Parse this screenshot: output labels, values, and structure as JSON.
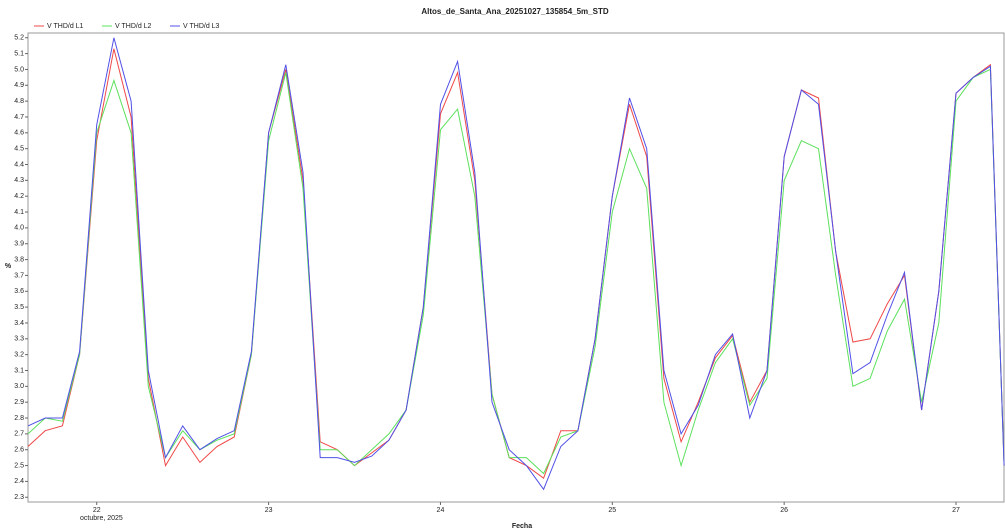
{
  "chart_data": {
    "type": "line",
    "title": "Altos_de_Santa_Ana_20251027_135854_5m_STD",
    "x_label": "Fecha",
    "x_sublabel": "octubre, 2025",
    "y_label": "%",
    "legend": "top-left",
    "grid": false,
    "x": [
      21.6,
      21.7,
      21.8,
      21.9,
      22.0,
      22.1,
      22.2,
      22.3,
      22.4,
      22.5,
      22.6,
      22.7,
      22.8,
      22.9,
      23.0,
      23.1,
      23.2,
      23.3,
      23.4,
      23.5,
      23.6,
      23.7,
      23.8,
      23.9,
      24.0,
      24.1,
      24.2,
      24.3,
      24.4,
      24.5,
      24.6,
      24.7,
      24.8,
      24.9,
      25.0,
      25.1,
      25.2,
      25.3,
      25.4,
      25.5,
      25.6,
      25.7,
      25.8,
      25.9,
      26.0,
      26.1,
      26.2,
      26.3,
      26.4,
      26.5,
      26.6,
      26.7,
      26.8,
      26.9,
      27.0,
      27.1,
      27.2,
      27.28
    ],
    "series": [
      {
        "name": "V THD/d L1",
        "color": "#f04848",
        "values": [
          2.62,
          2.72,
          2.75,
          3.2,
          4.55,
          5.13,
          4.7,
          3.05,
          2.5,
          2.68,
          2.52,
          2.62,
          2.68,
          3.2,
          4.6,
          5.0,
          4.3,
          2.65,
          2.6,
          2.5,
          2.58,
          2.66,
          2.85,
          3.5,
          4.72,
          4.98,
          4.3,
          2.95,
          2.55,
          2.5,
          2.42,
          2.72,
          2.72,
          3.3,
          4.2,
          4.78,
          4.45,
          3.05,
          2.65,
          2.9,
          3.18,
          3.32,
          2.9,
          3.1,
          4.45,
          4.87,
          4.82,
          3.85,
          3.28,
          3.3,
          3.52,
          3.7,
          2.85,
          3.6,
          4.85,
          4.95,
          5.03,
          2.5
        ]
      },
      {
        "name": "V THD/d L2",
        "color": "#5ce05c",
        "values": [
          2.7,
          2.8,
          2.78,
          3.2,
          4.6,
          4.93,
          4.6,
          3.0,
          2.55,
          2.72,
          2.6,
          2.66,
          2.7,
          3.2,
          4.55,
          4.98,
          4.25,
          2.6,
          2.6,
          2.5,
          2.6,
          2.7,
          2.85,
          3.45,
          4.62,
          4.75,
          4.2,
          2.95,
          2.55,
          2.55,
          2.45,
          2.68,
          2.72,
          3.25,
          4.1,
          4.5,
          4.25,
          2.9,
          2.5,
          2.85,
          3.15,
          3.3,
          2.88,
          3.05,
          4.3,
          4.55,
          4.5,
          3.7,
          3.0,
          3.05,
          3.35,
          3.55,
          2.9,
          3.4,
          4.8,
          4.95,
          5.0,
          2.5
        ]
      },
      {
        "name": "V THD/d L3",
        "color": "#5050e8",
        "values": [
          2.75,
          2.8,
          2.8,
          3.22,
          4.65,
          5.2,
          4.8,
          3.1,
          2.55,
          2.75,
          2.6,
          2.67,
          2.72,
          3.22,
          4.6,
          5.03,
          4.35,
          2.55,
          2.55,
          2.52,
          2.56,
          2.66,
          2.85,
          3.5,
          4.78,
          5.05,
          4.35,
          2.9,
          2.6,
          2.5,
          2.35,
          2.62,
          2.72,
          3.3,
          4.2,
          4.82,
          4.5,
          3.1,
          2.7,
          2.88,
          3.2,
          3.33,
          2.8,
          3.1,
          4.45,
          4.87,
          4.78,
          3.85,
          3.08,
          3.15,
          3.45,
          3.72,
          2.85,
          3.6,
          4.85,
          4.95,
          5.02,
          2.5
        ]
      }
    ],
    "xlim": [
      21.6,
      27.285
    ],
    "xticks": [
      22,
      23,
      24,
      25,
      26,
      27
    ],
    "ylim": [
      2.27,
      5.23
    ],
    "yticks": [
      2.3,
      2.4,
      2.5,
      2.6,
      2.7,
      2.8,
      2.9,
      {
        "value": 3,
        "label": "3.0"
      },
      3.1,
      3.2,
      3.3,
      3.4,
      3.5,
      3.6,
      3.7,
      3.8,
      3.9,
      {
        "value": 4,
        "label": "4.0"
      },
      4.1,
      4.2,
      4.3,
      4.4,
      4.5,
      4.6,
      4.7,
      4.8,
      4.9,
      {
        "value": 5,
        "label": "5.0"
      },
      5.1,
      5.2
    ]
  }
}
